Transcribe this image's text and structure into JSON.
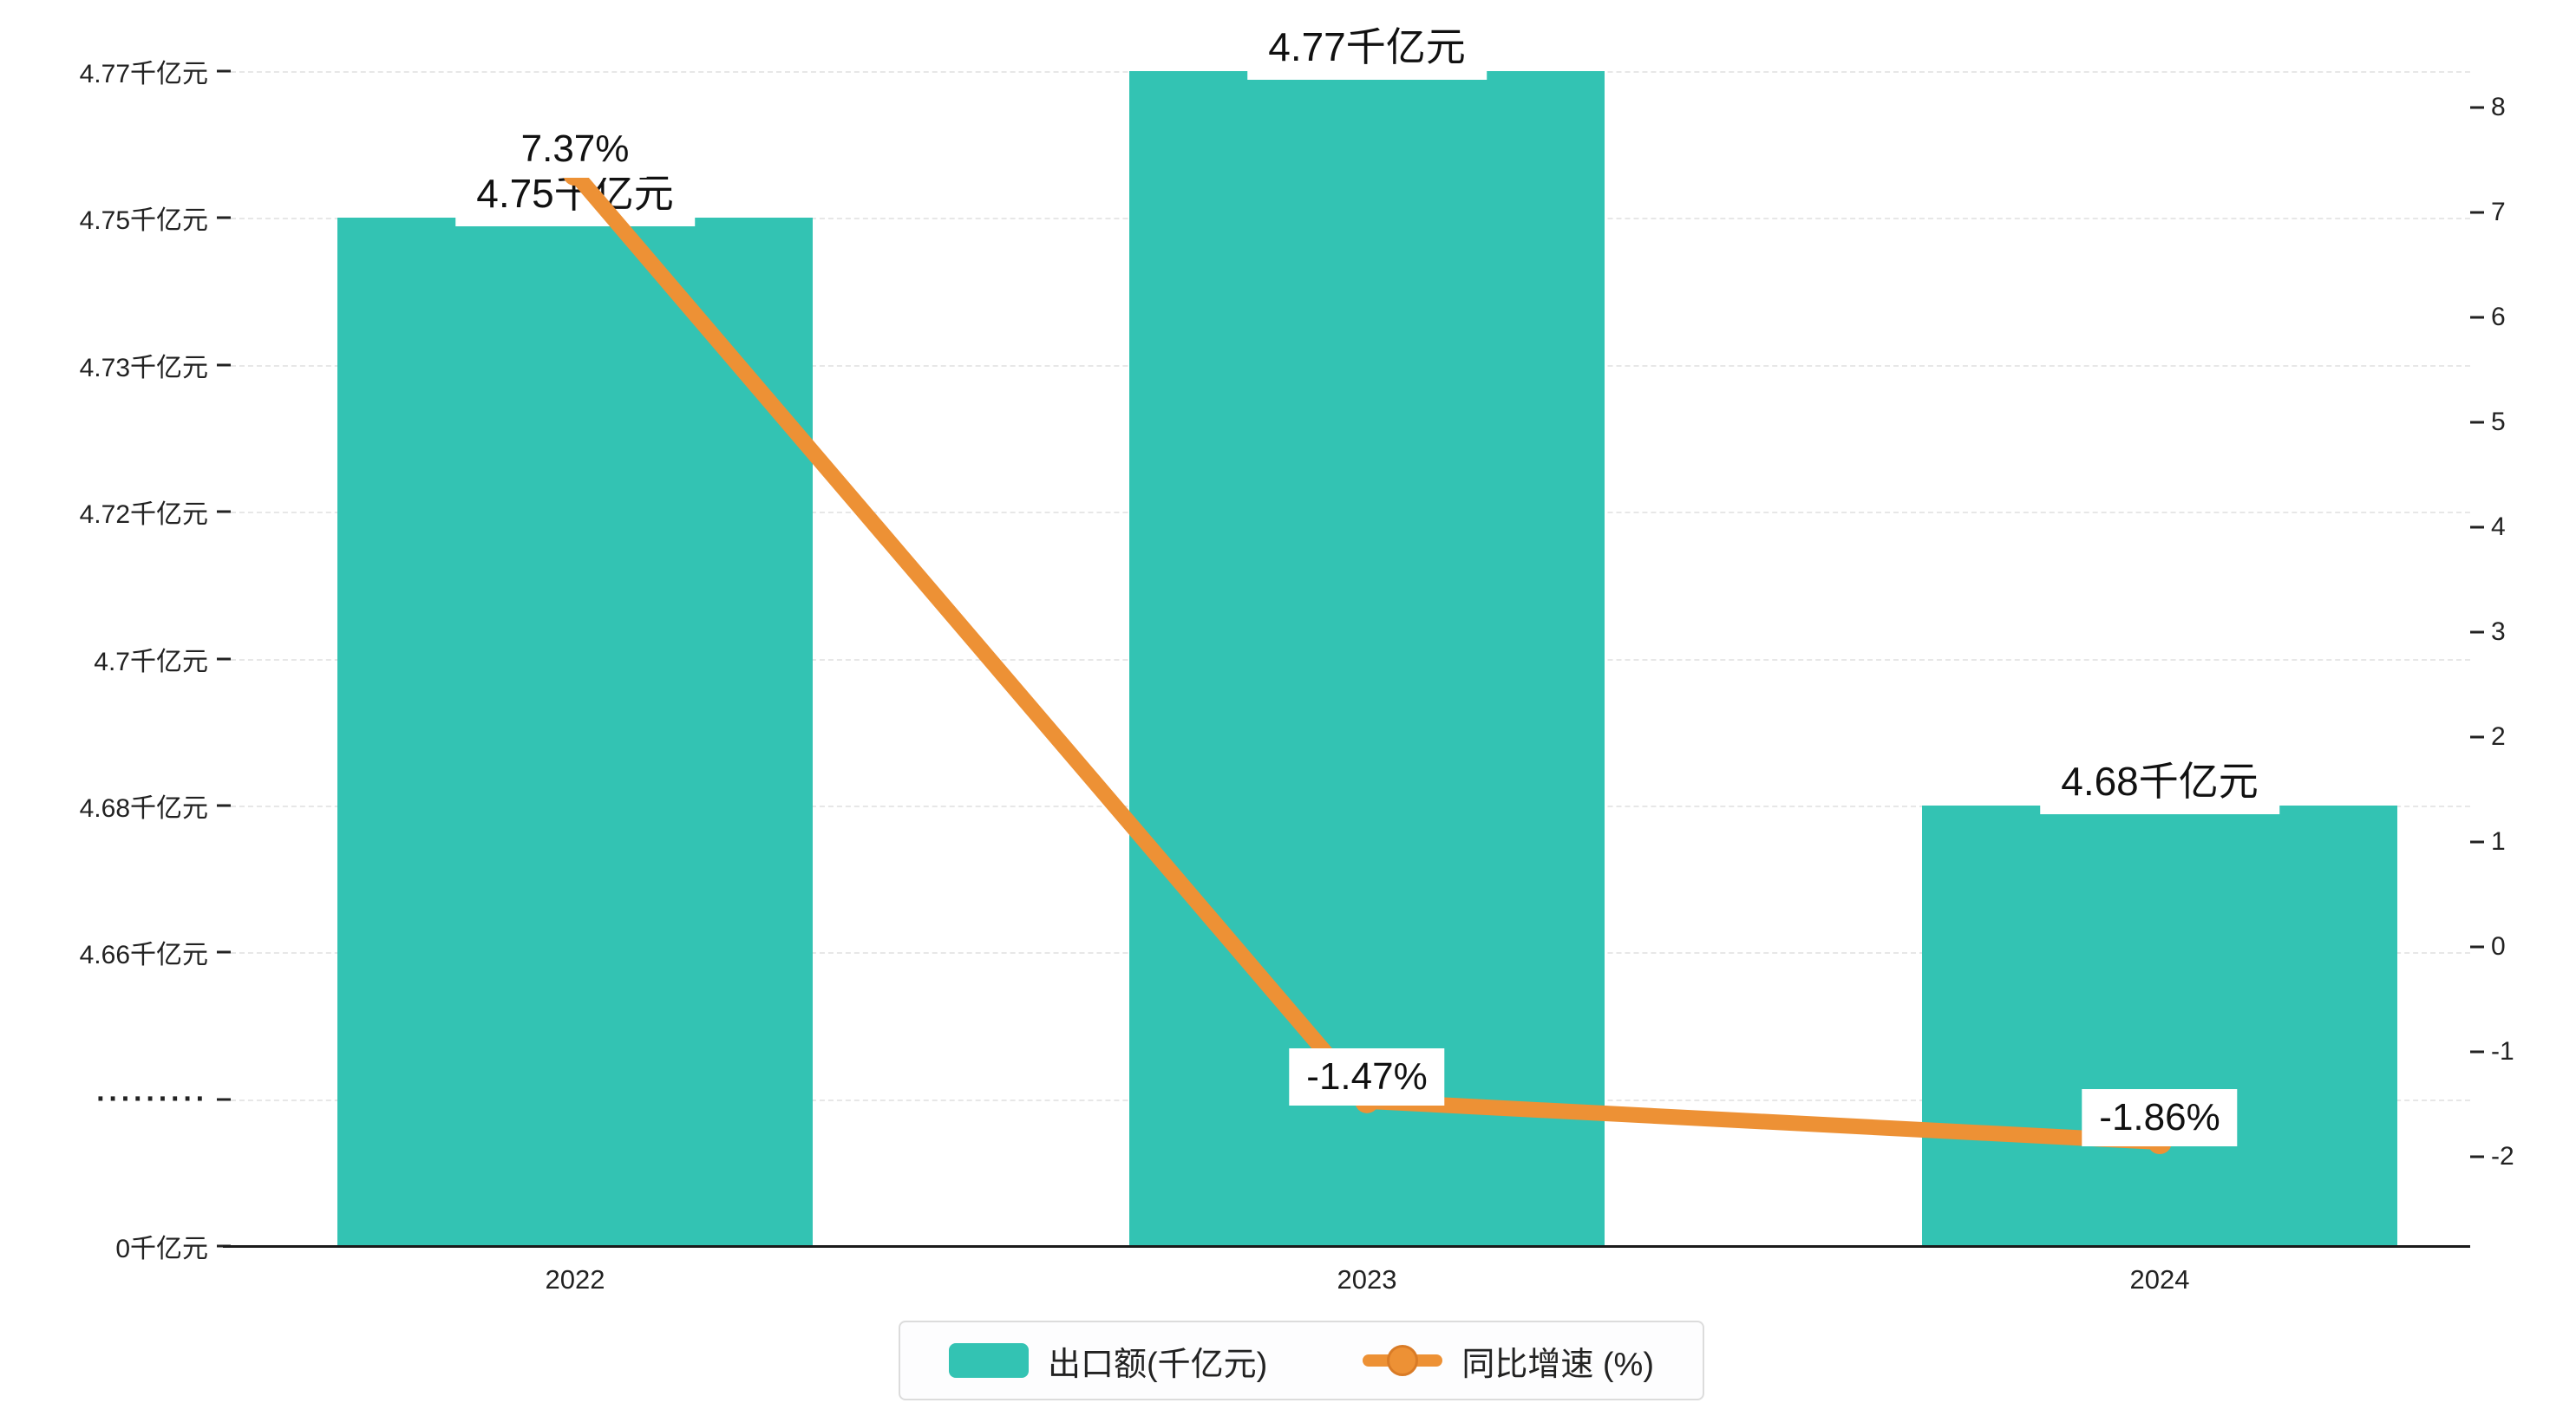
{
  "chart_data": {
    "type": "bar",
    "title": "",
    "categories": [
      "2022",
      "2023",
      "2024"
    ],
    "series": [
      {
        "name": "出口额(千亿元)",
        "type": "bar",
        "axis": "left",
        "values": [
          4.75,
          4.77,
          4.68
        ],
        "point_labels": [
          "4.75千亿元",
          "4.77千亿元",
          "4.68千亿元"
        ],
        "color": "#33c3b3"
      },
      {
        "name": "同比增速 (%)",
        "type": "line",
        "axis": "right",
        "values": [
          7.37,
          -1.47,
          -1.86
        ],
        "point_labels": [
          "7.37%",
          "-1.47%",
          "-1.86%"
        ],
        "color": "#ed9135"
      }
    ],
    "left_axis": {
      "tick_labels": [
        "4.77千亿元",
        "4.75千亿元",
        "4.73千亿元",
        "4.72千亿元",
        "4.7千亿元",
        "4.68千亿元",
        "4.66千亿元",
        "·········",
        "0千亿元"
      ],
      "broken_axis": true
    },
    "right_axis": {
      "tick_labels": [
        "8",
        "7",
        "6",
        "5",
        "4",
        "3",
        "2",
        "1",
        "0",
        "-1",
        "-2"
      ],
      "max": 8,
      "min": -2
    },
    "legend": [
      "出口额(千亿元)",
      "同比增速 (%)"
    ],
    "legend_position": "bottom",
    "grid": true
  }
}
